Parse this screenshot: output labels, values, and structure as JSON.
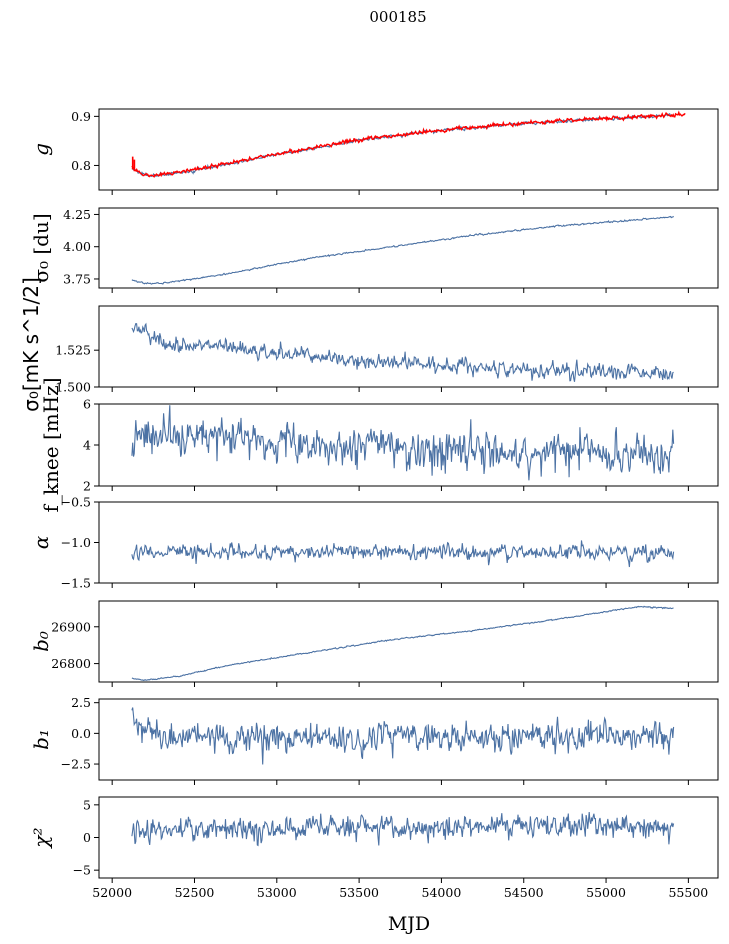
{
  "figure": {
    "title": "000185"
  },
  "chart_data": {
    "type": "line",
    "x_axis": {
      "label": "MJD",
      "range": [
        51920,
        55680
      ],
      "ticks": [
        52000,
        52500,
        53000,
        53500,
        54000,
        54500,
        55000,
        55500
      ],
      "tick_labels": [
        "52000",
        "52500",
        "53000",
        "53500",
        "54000",
        "54500",
        "55000",
        "55500"
      ]
    },
    "data_x_range": [
      52120,
      55410
    ],
    "series_color": "#4c72a4",
    "overlay_color": "#ff0000",
    "panels": [
      {
        "id": "g",
        "ylabel": "g",
        "ylim": [
          0.75,
          0.915
        ],
        "yticks": [
          0.8,
          0.9
        ],
        "ytick_labels": [
          "0.8",
          "0.9"
        ],
        "trend": [
          [
            52120,
            0.795
          ],
          [
            52180,
            0.782
          ],
          [
            52250,
            0.778
          ],
          [
            52500,
            0.79
          ],
          [
            53000,
            0.822
          ],
          [
            53500,
            0.851
          ],
          [
            54000,
            0.872
          ],
          [
            54500,
            0.885
          ],
          [
            55000,
            0.895
          ],
          [
            55410,
            0.903
          ]
        ],
        "noise": 0.0015,
        "overlay": {
          "trend": [
            [
              52120,
              0.798
            ],
            [
              52180,
              0.783
            ],
            [
              52250,
              0.779
            ],
            [
              52500,
              0.792
            ],
            [
              53000,
              0.824
            ],
            [
              53500,
              0.852
            ],
            [
              54000,
              0.873
            ],
            [
              54500,
              0.886
            ],
            [
              55000,
              0.896
            ],
            [
              55480,
              0.904
            ]
          ],
          "noise": 0.0018,
          "x_end": 55480
        }
      },
      {
        "id": "sigma0du",
        "ylabel": "σ₀ [du]",
        "ylim": [
          3.68,
          4.3
        ],
        "yticks": [
          3.75,
          4.0,
          4.25
        ],
        "ytick_labels": [
          "3.75",
          "4.00",
          "4.25"
        ],
        "trend": [
          [
            52120,
            3.74
          ],
          [
            52200,
            3.715
          ],
          [
            52300,
            3.715
          ],
          [
            52700,
            3.79
          ],
          [
            53200,
            3.91
          ],
          [
            53700,
            4.0
          ],
          [
            54200,
            4.09
          ],
          [
            54700,
            4.16
          ],
          [
            55410,
            4.23
          ]
        ],
        "noise": 0.003
      },
      {
        "id": "sigma0mk",
        "ylabel": "σ₀[mK s^1/2]",
        "ylim": [
          1.5,
          1.555
        ],
        "yticks": [
          1.5,
          1.525
        ],
        "ytick_labels": [
          "1.500",
          "1.525"
        ],
        "trend": [
          [
            52120,
            1.542
          ],
          [
            52300,
            1.53
          ],
          [
            52600,
            1.528
          ],
          [
            53000,
            1.522
          ],
          [
            53500,
            1.518
          ],
          [
            54000,
            1.515
          ],
          [
            54500,
            1.512
          ],
          [
            55000,
            1.511
          ],
          [
            55410,
            1.508
          ]
        ],
        "noise": 0.0025
      },
      {
        "id": "fknee",
        "ylabel": "f_knee [mHz]",
        "ylim": [
          2,
          6
        ],
        "yticks": [
          2,
          4,
          6
        ],
        "ytick_labels": [
          "2",
          "4",
          "6"
        ],
        "trend": [
          [
            52120,
            4.5
          ],
          [
            52700,
            4.3
          ],
          [
            53500,
            3.9
          ],
          [
            54500,
            3.6
          ],
          [
            55410,
            3.5
          ]
        ],
        "noise": 0.45
      },
      {
        "id": "alpha",
        "ylabel": "α",
        "ylim": [
          -1.5,
          -0.5
        ],
        "yticks": [
          -1.5,
          -1.0,
          -0.5
        ],
        "ytick_labels": [
          "−1.5",
          "−1.0",
          "−0.5"
        ],
        "trend": [
          [
            52120,
            -1.12
          ],
          [
            55410,
            -1.12
          ]
        ],
        "noise": 0.045
      },
      {
        "id": "b0",
        "ylabel": "b₀",
        "ylim": [
          26750,
          26970
        ],
        "yticks": [
          26800,
          26900
        ],
        "ytick_labels": [
          "26800",
          "26900"
        ],
        "trend": [
          [
            52120,
            26760
          ],
          [
            52200,
            26755
          ],
          [
            52400,
            26765
          ],
          [
            52700,
            26795
          ],
          [
            53200,
            26830
          ],
          [
            53700,
            26865
          ],
          [
            54200,
            26890
          ],
          [
            54700,
            26920
          ],
          [
            55200,
            26955
          ],
          [
            55410,
            26950
          ]
        ],
        "noise": 0.8
      },
      {
        "id": "b1",
        "ylabel": "b₁",
        "ylim": [
          -3.8,
          2.8
        ],
        "yticks": [
          -2.5,
          0.0,
          2.5
        ],
        "ytick_labels": [
          "−2.5",
          "0.0",
          "2.5"
        ],
        "trend": [
          [
            52120,
            1.8
          ],
          [
            52200,
            0.2
          ],
          [
            52300,
            -0.3
          ],
          [
            55410,
            -0.2
          ]
        ],
        "noise": 0.55
      },
      {
        "id": "chi2",
        "ylabel": "χ²",
        "ylim": [
          -6.2,
          6.2
        ],
        "yticks": [
          -5,
          0,
          5
        ],
        "ytick_labels": [
          "−5",
          "0",
          "5"
        ],
        "trend": [
          [
            52120,
            1.2
          ],
          [
            55410,
            1.8
          ]
        ],
        "noise": 0.85
      }
    ]
  }
}
